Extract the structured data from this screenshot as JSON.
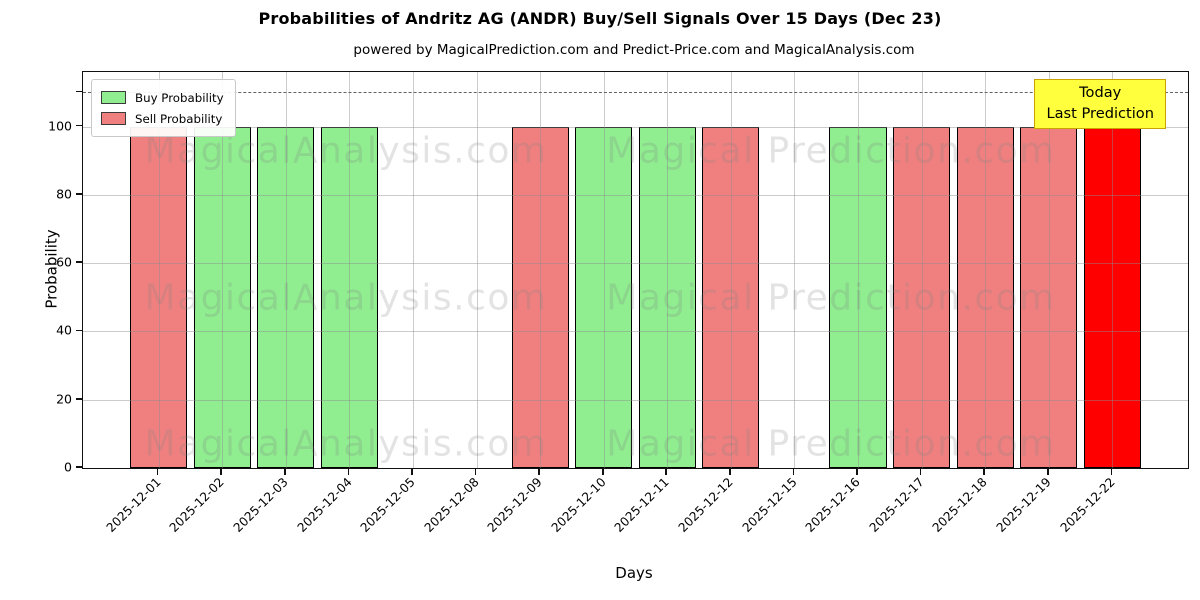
{
  "chart_data": {
    "type": "bar",
    "title": "Probabilities of Andritz AG (ANDR) Buy/Sell Signals Over 15 Days (Dec 23)",
    "subtitle": "powered by MagicalPrediction.com and Predict-Price.com and MagicalAnalysis.com",
    "xlabel": "Days",
    "ylabel": "Probability",
    "ylim": [
      0,
      116
    ],
    "yticks": [
      0,
      20,
      40,
      60,
      80,
      100
    ],
    "unlabeled_ytick": 110,
    "dashed_line_y": 110,
    "grid": "on",
    "legend_position": "top-left",
    "categories": [
      "2025-12-01",
      "2025-12-02",
      "2025-12-03",
      "2025-12-04",
      "2025-12-05",
      "2025-12-08",
      "2025-12-09",
      "2025-12-10",
      "2025-12-11",
      "2025-12-12",
      "2025-12-15",
      "2025-12-16",
      "2025-12-17",
      "2025-12-18",
      "2025-12-19",
      "2025-12-22"
    ],
    "series": [
      {
        "name": "Buy Probability",
        "color": "#90ee90",
        "values": [
          0,
          100,
          100,
          100,
          0,
          0,
          0,
          100,
          100,
          0,
          0,
          100,
          0,
          0,
          0,
          0
        ]
      },
      {
        "name": "Sell Probability",
        "color": "#f08080",
        "values": [
          100,
          0,
          0,
          0,
          0,
          0,
          100,
          0,
          0,
          100,
          0,
          0,
          100,
          100,
          100,
          0
        ]
      },
      {
        "name": "Today Last Prediction",
        "color": "#ff0000",
        "values": [
          0,
          0,
          0,
          0,
          0,
          0,
          0,
          0,
          0,
          0,
          0,
          0,
          0,
          0,
          0,
          100
        ]
      }
    ],
    "bar_edge_color": "#000000",
    "legend": {
      "entries": [
        {
          "label": "Buy Probability",
          "color": "#90ee90"
        },
        {
          "label": "Sell Probability",
          "color": "#f08080"
        }
      ]
    },
    "annotation": {
      "line1": "Today",
      "line2": "Last Prediction",
      "bg_color": "#ffff3d",
      "border_color": "#c9a400"
    },
    "watermarks": {
      "left_text": "MagicalAnalysis.com",
      "right_text": "Magical Prediction.com"
    }
  }
}
